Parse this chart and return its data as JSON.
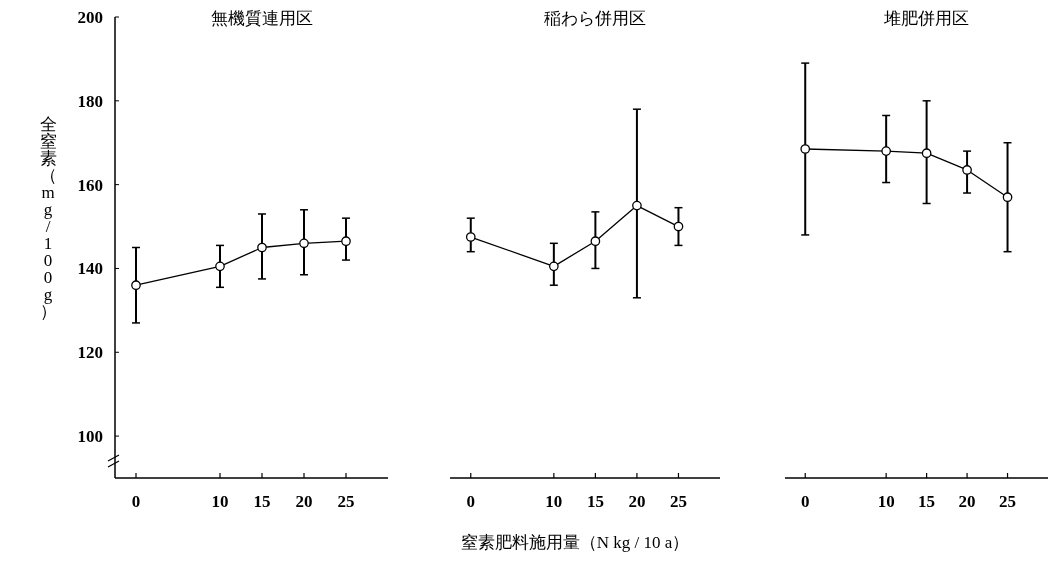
{
  "chart_data": [
    {
      "type": "line",
      "title": "無機質連用区",
      "ylabel": "全窒素（mg/100g）",
      "x": [
        0,
        10,
        15,
        20,
        25
      ],
      "xlim": [
        -2.5,
        30
      ],
      "ylim": [
        90,
        200
      ],
      "xticks": [
        0,
        10,
        15,
        20,
        25
      ],
      "yticks": [
        100,
        120,
        140,
        160,
        180,
        200
      ],
      "marker": "circle",
      "series": [
        {
          "color": "#000000",
          "values": [
            136,
            140.5,
            145,
            146,
            146.5
          ],
          "errors": [
            [
              127,
              145
            ],
            [
              135.5,
              145.5
            ],
            [
              137.5,
              153
            ],
            [
              138.5,
              154
            ],
            [
              142,
              152
            ]
          ]
        }
      ]
    },
    {
      "type": "line",
      "title": "稲わら併用区",
      "xlabel": "窒素肥料施用量（N kg / 10 a）",
      "x": [
        0,
        10,
        15,
        20,
        25
      ],
      "xlim": [
        -2.5,
        30
      ],
      "ylim": [
        90,
        200
      ],
      "xticks": [
        0,
        10,
        15,
        20,
        25
      ],
      "tick_labels": "x",
      "marker": "circle",
      "series": [
        {
          "color": "#000000",
          "values": [
            147.5,
            140.5,
            146.5,
            155,
            150
          ],
          "errors": [
            [
              144,
              152
            ],
            [
              136,
              146
            ],
            [
              140,
              153.5
            ],
            [
              133,
              178
            ],
            [
              145.5,
              154.5
            ]
          ]
        }
      ]
    },
    {
      "type": "line",
      "title": "堆肥併用区",
      "x": [
        0,
        10,
        15,
        20,
        25
      ],
      "xlim": [
        -2.5,
        30
      ],
      "ylim": [
        90,
        200
      ],
      "xticks": [
        0,
        10,
        15,
        20,
        25
      ],
      "tick_labels": "x",
      "marker": "circle",
      "series": [
        {
          "color": "#000000",
          "values": [
            168.5,
            168,
            167.5,
            163.5,
            157
          ],
          "errors": [
            [
              148,
              189
            ],
            [
              160.5,
              176.5
            ],
            [
              155.5,
              180
            ],
            [
              158,
              168
            ],
            [
              144,
              170
            ]
          ]
        }
      ]
    }
  ]
}
